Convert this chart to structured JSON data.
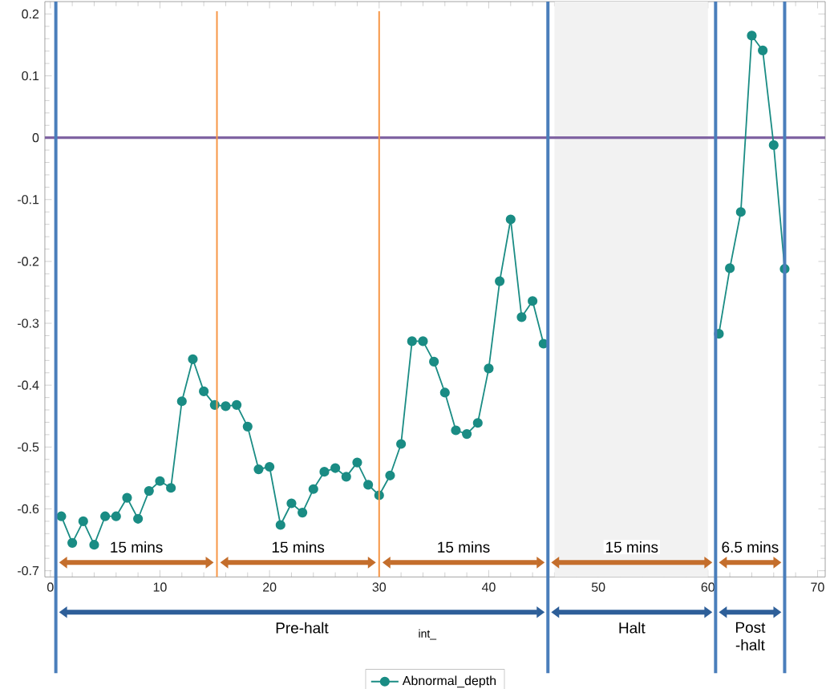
{
  "chart_data": {
    "type": "line",
    "xlabel": "int_",
    "x": [
      1,
      2,
      3,
      4,
      5,
      6,
      7,
      8,
      9,
      10,
      11,
      12,
      13,
      14,
      15,
      16,
      17,
      18,
      19,
      20,
      21,
      22,
      23,
      24,
      25,
      26,
      27,
      28,
      29,
      30,
      31,
      32,
      33,
      34,
      35,
      36,
      37,
      38,
      39,
      40,
      41,
      42,
      43,
      44,
      45,
      46,
      47,
      48,
      49,
      50,
      51,
      52,
      53,
      54,
      55,
      56,
      57,
      58,
      59,
      60,
      61,
      62,
      63,
      64,
      65,
      66,
      67
    ],
    "series": [
      {
        "name": "Abnormal_depth",
        "color": "#1a8c84",
        "values": [
          -0.612,
          -0.655,
          -0.62,
          -0.658,
          -0.612,
          -0.612,
          -0.582,
          -0.616,
          -0.571,
          -0.555,
          -0.566,
          -0.426,
          -0.358,
          -0.41,
          -0.432,
          -0.434,
          -0.432,
          -0.467,
          -0.536,
          -0.532,
          -0.626,
          -0.591,
          -0.606,
          -0.568,
          -0.54,
          -0.534,
          -0.548,
          -0.525,
          -0.561,
          -0.578,
          -0.546,
          -0.495,
          -0.329,
          -0.329,
          -0.362,
          -0.412,
          -0.473,
          -0.479,
          -0.461,
          -0.373,
          -0.232,
          -0.132,
          -0.29,
          -0.264,
          -0.333,
          null,
          null,
          null,
          null,
          null,
          null,
          null,
          null,
          null,
          null,
          null,
          null,
          null,
          null,
          null,
          -0.317,
          -0.211,
          -0.12,
          0.165,
          0.141,
          -0.012,
          -0.212
        ]
      }
    ],
    "xlim": [
      -0.5,
      70.7
    ],
    "ylim": [
      -0.71,
      0.22
    ],
    "xticks": [
      0,
      10,
      20,
      30,
      40,
      50,
      60,
      70
    ],
    "yticks": [
      -0.7,
      -0.6,
      -0.5,
      -0.4,
      -0.3,
      -0.2,
      -0.1,
      0,
      0.1,
      0.2
    ],
    "ref_lines": [
      {
        "axis": "x",
        "value": 0.5,
        "color": "#4a7ebb"
      },
      {
        "axis": "x",
        "value": 45.4,
        "color": "#4a7ebb"
      },
      {
        "axis": "x",
        "value": 60.7,
        "color": "#4a7ebb"
      },
      {
        "axis": "x",
        "value": 67,
        "color": "#4a7ebb"
      },
      {
        "axis": "x",
        "value": 15.2,
        "color": "#f79646"
      },
      {
        "axis": "x",
        "value": 30,
        "color": "#f79646"
      },
      {
        "axis": "y",
        "value": 0,
        "color": "#8064a2"
      }
    ],
    "bands": [
      {
        "axis": "x",
        "from": 46,
        "to": 60,
        "color": "#f2f2f2"
      }
    ],
    "annotations": [
      "15 mins",
      "15 mins",
      "15 mins",
      "15 mins",
      "6.5 mins",
      "Pre-halt",
      "Halt",
      "Post -halt"
    ],
    "marker": "circle",
    "legend": "bottom",
    "grid": false
  }
}
